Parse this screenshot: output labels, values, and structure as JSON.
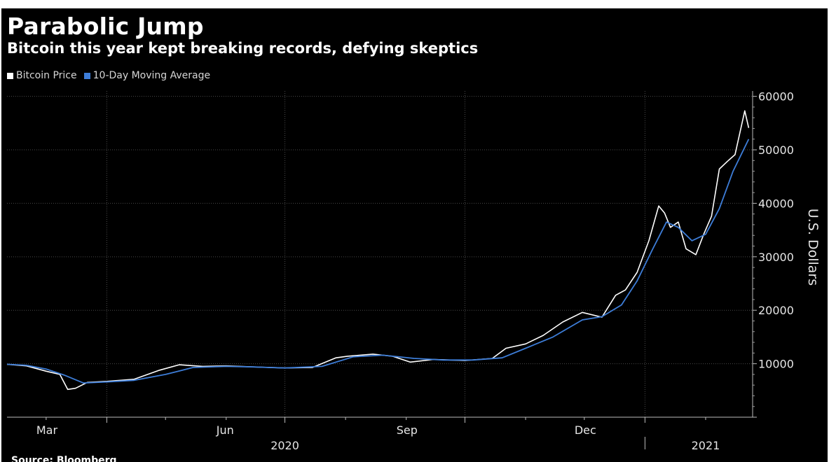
{
  "title": "Parabolic Jump",
  "subtitle": "Bitcoin this year kept breaking records, defying skeptics",
  "legend": {
    "items": [
      {
        "label": "Bitcoin Price",
        "color": "#ffffff"
      },
      {
        "label": "10-Day Moving Average",
        "color": "#3d7dd8"
      }
    ]
  },
  "source": "Source: Bloomberg",
  "chart_data": {
    "type": "line",
    "ylabel": "U.S. Dollars",
    "ylim": [
      0,
      61000
    ],
    "yticks": [
      10000,
      20000,
      30000,
      40000,
      50000,
      60000
    ],
    "y_axis_position": "right",
    "grid": true,
    "legend_position": "top-left",
    "x_range": [
      "2020-02-10",
      "2021-02-25"
    ],
    "month_labels": [
      {
        "label": "Mar",
        "date": "2020-03-01"
      },
      {
        "label": "Jun",
        "date": "2020-06-01"
      },
      {
        "label": "Sep",
        "date": "2020-09-01"
      },
      {
        "label": "Dec",
        "date": "2020-12-01"
      }
    ],
    "year_labels": [
      {
        "label": "2020",
        "date": "2020-07-01"
      },
      {
        "label": "2021",
        "date": "2021-02-01"
      }
    ],
    "series": [
      {
        "name": "Bitcoin Price",
        "color": "#ffffff",
        "x": [
          "2020-02-10",
          "2020-02-20",
          "2020-03-01",
          "2020-03-08",
          "2020-03-12",
          "2020-03-16",
          "2020-03-22",
          "2020-04-01",
          "2020-04-15",
          "2020-04-28",
          "2020-05-08",
          "2020-05-20",
          "2020-06-01",
          "2020-06-15",
          "2020-07-01",
          "2020-07-15",
          "2020-07-27",
          "2020-08-02",
          "2020-08-15",
          "2020-08-25",
          "2020-09-03",
          "2020-09-15",
          "2020-10-01",
          "2020-10-15",
          "2020-10-22",
          "2020-11-01",
          "2020-11-10",
          "2020-11-20",
          "2020-11-30",
          "2020-12-10",
          "2020-12-17",
          "2020-12-22",
          "2020-12-28",
          "2021-01-03",
          "2021-01-08",
          "2021-01-11",
          "2021-01-14",
          "2021-01-18",
          "2021-01-22",
          "2021-01-27",
          "2021-01-31",
          "2021-02-04",
          "2021-02-08",
          "2021-02-12",
          "2021-02-16",
          "2021-02-21",
          "2021-02-23"
        ],
        "values": [
          9900,
          9600,
          8600,
          8000,
          5200,
          5400,
          6500,
          6700,
          7100,
          8800,
          9800,
          9500,
          9600,
          9400,
          9200,
          9300,
          11100,
          11400,
          11800,
          11400,
          10300,
          10800,
          10600,
          11000,
          12900,
          13700,
          15300,
          17800,
          19600,
          18700,
          22800,
          23800,
          27100,
          33000,
          39500,
          38200,
          35500,
          36500,
          31500,
          30400,
          34200,
          37600,
          46400,
          47800,
          49100,
          57300,
          54100
        ]
      },
      {
        "name": "10-Day Moving Average",
        "color": "#3d7dd8",
        "x": [
          "2020-02-10",
          "2020-02-20",
          "2020-03-01",
          "2020-03-10",
          "2020-03-20",
          "2020-04-01",
          "2020-04-15",
          "2020-05-01",
          "2020-05-15",
          "2020-06-01",
          "2020-06-15",
          "2020-07-01",
          "2020-07-20",
          "2020-08-05",
          "2020-08-20",
          "2020-09-05",
          "2020-09-20",
          "2020-10-05",
          "2020-10-20",
          "2020-11-01",
          "2020-11-15",
          "2020-11-30",
          "2020-12-10",
          "2020-12-20",
          "2020-12-28",
          "2021-01-05",
          "2021-01-12",
          "2021-01-18",
          "2021-01-25",
          "2021-02-01",
          "2021-02-08",
          "2021-02-15",
          "2021-02-23"
        ],
        "values": [
          9900,
          9700,
          9000,
          7900,
          6400,
          6600,
          6900,
          8000,
          9300,
          9500,
          9400,
          9200,
          9500,
          11300,
          11600,
          11000,
          10700,
          10700,
          11100,
          12900,
          15000,
          18200,
          18800,
          21000,
          25500,
          31500,
          36500,
          35500,
          33000,
          34200,
          39000,
          46000,
          52000
        ]
      }
    ]
  }
}
